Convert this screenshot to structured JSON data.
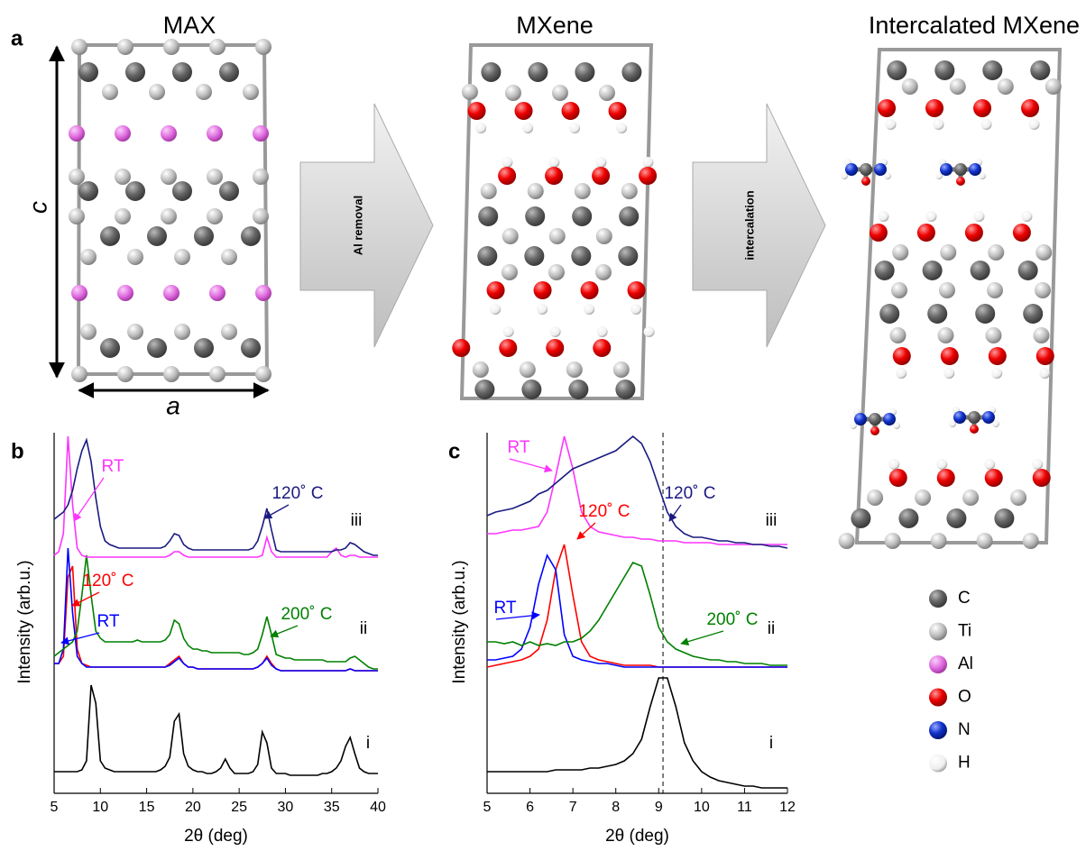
{
  "panel_a": {
    "label": "a",
    "titles": [
      "MAX",
      "MXene",
      "Intercalated MXene"
    ],
    "axis_labels": [
      "c",
      "a"
    ],
    "process_labels": [
      "Al removal",
      "intercalation"
    ],
    "legend": [
      "C",
      "Ti",
      "Al",
      "O",
      "N",
      "H"
    ]
  },
  "chart_data": [
    {
      "type": "line",
      "label": "b",
      "xlabel": "2θ (deg)",
      "ylabel": "Intensity (arb.u.)",
      "x": [
        5,
        5.5,
        6,
        6.5,
        7,
        7.5,
        8,
        8.5,
        9,
        9.5,
        10,
        10.5,
        11,
        11.5,
        12,
        12.5,
        13,
        13.5,
        14,
        14.5,
        15,
        15.5,
        16,
        16.5,
        17,
        17.5,
        18,
        18.5,
        19,
        19.5,
        20,
        20.5,
        21,
        21.5,
        22,
        22.5,
        23,
        23.5,
        24,
        24.5,
        25,
        25.5,
        26,
        26.5,
        27,
        27.5,
        28,
        28.5,
        29,
        29.5,
        30,
        30.5,
        31,
        31.5,
        32,
        32.5,
        33,
        33.5,
        34,
        34.5,
        35,
        35.5,
        36,
        36.5,
        37,
        37.5,
        38,
        38.5,
        39,
        39.5,
        40
      ],
      "xlim": [
        5,
        40
      ],
      "xticks": [
        5,
        10,
        15,
        20,
        25,
        30,
        35,
        40
      ],
      "ylim": [
        0,
        100
      ],
      "series": [
        {
          "color": "#000000",
          "values": [
            6,
            6,
            6,
            6,
            6,
            6,
            6.5,
            9,
            30,
            25,
            9,
            7,
            6.5,
            6,
            6,
            6,
            6,
            6,
            6,
            6,
            6,
            6,
            6,
            6.5,
            7.5,
            10,
            20,
            22,
            11,
            7.5,
            6.5,
            6,
            6,
            5.5,
            5.5,
            6,
            7,
            9.5,
            7,
            5.5,
            5.5,
            5.5,
            5.5,
            6,
            8,
            17,
            14,
            7,
            5.5,
            5.5,
            5.5,
            5,
            5,
            5,
            5,
            5,
            5,
            5,
            5.5,
            5.5,
            6,
            7,
            9,
            13,
            15.5,
            11,
            7,
            6,
            5.5,
            5.5,
            5.5
          ]
        },
        {
          "color": "#ff0000",
          "values": [
            36,
            36,
            38,
            60,
            63,
            40,
            36,
            35.5,
            35,
            35,
            35,
            35,
            35,
            35,
            35,
            35,
            35,
            35,
            35,
            35,
            35,
            35,
            35,
            35,
            35,
            36,
            37,
            38,
            36,
            35,
            35,
            34.5,
            34.5,
            34.5,
            34.5,
            34.5,
            34.5,
            34.5,
            34.5,
            34.5,
            34.5,
            34.5,
            34.5,
            34.5,
            35,
            36,
            38,
            36,
            34.5,
            34,
            34,
            34,
            34,
            34,
            34,
            34,
            34,
            34,
            34,
            34,
            34,
            34,
            34,
            34,
            34.5,
            34,
            34,
            34,
            34,
            34,
            34
          ]
        },
        {
          "color": "#0000ff",
          "values": [
            36,
            36,
            40,
            68,
            50,
            38,
            36,
            35,
            35,
            35,
            35,
            35,
            35,
            35,
            35,
            35,
            35,
            35,
            35,
            35,
            35,
            35,
            35,
            35,
            35,
            35.5,
            36.5,
            37.5,
            36,
            35,
            35,
            34.5,
            34.5,
            34.5,
            34.5,
            34.5,
            34.5,
            34.5,
            34.5,
            34.5,
            34.5,
            34.5,
            34.5,
            34.5,
            35,
            36,
            37.5,
            35.5,
            34.5,
            34,
            34,
            34,
            34,
            34,
            34,
            34,
            34,
            34,
            34,
            34,
            34,
            34,
            34,
            34,
            34.5,
            34,
            34,
            34,
            34,
            34,
            34
          ]
        },
        {
          "color": "#008000",
          "values": [
            38,
            39,
            40,
            41,
            42,
            45,
            55,
            66,
            55,
            45,
            43,
            42,
            42,
            42,
            42,
            42,
            42,
            42,
            42.5,
            42,
            42,
            42,
            42,
            42,
            42.5,
            44,
            48,
            47,
            43,
            41,
            40,
            40,
            39.5,
            39.5,
            39,
            39,
            39,
            39,
            39,
            39,
            39,
            38.5,
            38.5,
            39,
            40,
            44,
            49,
            44,
            38.5,
            38,
            37.5,
            37.5,
            37,
            37,
            37,
            37,
            37,
            37,
            37,
            36.5,
            36.5,
            36.5,
            36.5,
            36.5,
            37.5,
            38,
            37,
            36,
            35,
            34.5,
            34.5
          ]
        },
        {
          "color": "#ff33ff",
          "values": [
            66,
            67,
            72,
            99,
            80,
            68,
            66,
            65.5,
            65.5,
            65.5,
            65.5,
            65.5,
            65.5,
            65.5,
            65.5,
            65.5,
            65.5,
            65.5,
            65.5,
            65.5,
            65.5,
            65.5,
            65.5,
            65.5,
            65.5,
            66,
            67,
            67,
            66,
            65.5,
            65.5,
            65.5,
            65.5,
            65.5,
            65.5,
            65.5,
            65.5,
            65.5,
            65.5,
            65.5,
            65.5,
            65.5,
            65.5,
            65.5,
            65.5,
            66,
            71,
            67,
            65.5,
            65.5,
            65.5,
            65.5,
            65.5,
            65.5,
            65.5,
            65.5,
            65.5,
            65.5,
            65.5,
            65.5,
            67,
            68,
            66,
            65.5,
            66,
            66,
            65.5,
            65.5,
            65.5,
            65.5,
            65.5
          ]
        },
        {
          "color": "#1a1a80",
          "values": [
            76,
            77,
            78,
            80,
            84,
            90,
            95,
            98,
            92,
            82,
            74,
            70,
            69,
            68.5,
            68,
            68,
            68,
            68,
            68,
            68,
            68,
            68,
            68,
            68,
            68.5,
            70,
            72,
            71.5,
            69,
            68,
            67.5,
            67.5,
            67.5,
            67.5,
            67.5,
            67.5,
            67.5,
            67.5,
            67.5,
            67.5,
            67.5,
            67.5,
            67.5,
            68,
            70,
            74,
            79,
            73,
            67.5,
            67,
            67,
            67,
            67,
            67,
            67,
            67,
            67,
            67,
            67,
            67,
            67,
            67.5,
            67.5,
            68,
            69.5,
            69,
            68,
            67,
            66.5,
            66,
            66
          ]
        }
      ],
      "annotations": [
        {
          "text": "RT",
          "color": "#ff33ff"
        },
        {
          "text": "120˚ C",
          "color": "#1a1a80"
        },
        {
          "text": "iii",
          "color": "#000000"
        },
        {
          "text": "120˚ C",
          "color": "#ff0000"
        },
        {
          "text": "200˚ C",
          "color": "#008000"
        },
        {
          "text": "RT",
          "color": "#0000ff"
        },
        {
          "text": "ii",
          "color": "#000000"
        },
        {
          "text": "i",
          "color": "#000000"
        }
      ]
    },
    {
      "type": "line",
      "label": "c",
      "xlabel": "2θ (deg)",
      "ylabel": "Intensity (arb.u.)",
      "x": [
        5,
        5.2,
        5.4,
        5.6,
        5.8,
        6,
        6.2,
        6.4,
        6.6,
        6.8,
        7,
        7.2,
        7.4,
        7.6,
        7.8,
        8,
        8.2,
        8.4,
        8.6,
        8.8,
        9,
        9.2,
        9.4,
        9.6,
        9.8,
        10,
        10.2,
        10.4,
        10.6,
        10.8,
        11,
        11.2,
        11.4,
        11.6,
        11.8,
        12
      ],
      "xlim": [
        5,
        12
      ],
      "xticks": [
        5,
        6,
        7,
        8,
        9,
        10,
        11,
        12
      ],
      "ylim": [
        0,
        100
      ],
      "vline": 9.1,
      "series": [
        {
          "color": "#000000",
          "values": [
            6,
            6,
            6,
            6,
            6,
            6,
            6,
            6,
            6.5,
            6.5,
            6.5,
            6.5,
            7,
            7,
            7.5,
            8,
            9,
            11,
            15,
            24,
            32,
            32,
            24,
            14,
            9,
            6,
            4.5,
            3.5,
            3,
            2.5,
            2,
            2,
            1.5,
            1.5,
            1.5,
            1.5
          ]
        },
        {
          "color": "#ff0000",
          "values": [
            35,
            35.5,
            36,
            36.5,
            37,
            38,
            40,
            48,
            62,
            69,
            55,
            42,
            38,
            37,
            36.5,
            36,
            35.5,
            35.5,
            35.5,
            35.5,
            35,
            35,
            35,
            35,
            35,
            35,
            35,
            35,
            35,
            35,
            35,
            35,
            35,
            35,
            35,
            35
          ]
        },
        {
          "color": "#0000ff",
          "values": [
            37,
            37,
            37.5,
            38,
            40,
            46,
            58,
            66,
            62,
            44,
            38,
            37,
            36.5,
            36,
            36,
            35.5,
            35,
            35,
            35,
            35,
            35,
            35,
            35,
            35,
            35,
            35,
            35,
            35,
            35,
            35,
            35,
            35,
            35,
            35,
            35,
            35
          ]
        },
        {
          "color": "#008000",
          "values": [
            42,
            42,
            41.5,
            42,
            41,
            42,
            41,
            41.5,
            41,
            42,
            42,
            43,
            45,
            48,
            52,
            56,
            60,
            64,
            63,
            55,
            46,
            42,
            40,
            39,
            38,
            37.5,
            37,
            37,
            36.5,
            36.5,
            36,
            36,
            36,
            35.5,
            35.5,
            35.5
          ]
        },
        {
          "color": "#ff33ff",
          "values": [
            72,
            72,
            72.5,
            73,
            73,
            73.5,
            74,
            78,
            88,
            99,
            90,
            78,
            74,
            72.5,
            72,
            71.5,
            71,
            71,
            70.5,
            70.5,
            70,
            70,
            70,
            69.5,
            69.5,
            69.5,
            69.5,
            69,
            69,
            69,
            69,
            69,
            69,
            69,
            69,
            69
          ]
        },
        {
          "color": "#1a1a80",
          "values": [
            77,
            78,
            78.5,
            79,
            80,
            81,
            83,
            84,
            86,
            88,
            90,
            91,
            92,
            93,
            94,
            95,
            97,
            99,
            97,
            92,
            85,
            78,
            74,
            72,
            71,
            71,
            70.5,
            70,
            70,
            69.5,
            69.5,
            69,
            69,
            68.5,
            68.5,
            68
          ]
        }
      ],
      "annotations": [
        {
          "text": "RT",
          "color": "#ff33ff"
        },
        {
          "text": "120˚ C",
          "color": "#1a1a80"
        },
        {
          "text": "iii",
          "color": "#000000"
        },
        {
          "text": "RT",
          "color": "#0000ff"
        },
        {
          "text": "120˚ C",
          "color": "#ff0000"
        },
        {
          "text": "200˚ C",
          "color": "#008000"
        },
        {
          "text": "ii",
          "color": "#000000"
        },
        {
          "text": "i",
          "color": "#000000"
        }
      ]
    }
  ]
}
